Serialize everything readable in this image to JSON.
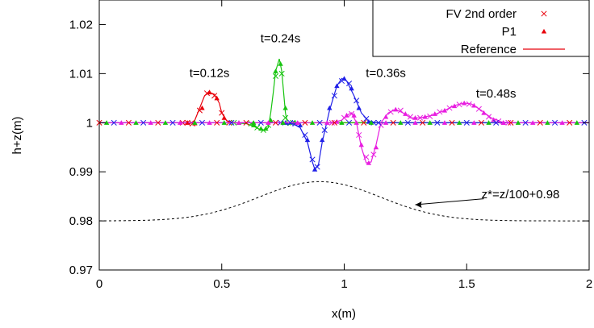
{
  "chart_data": {
    "type": "line",
    "xlabel": "x(m)",
    "ylabel": "h+z(m)",
    "xlim": [
      0,
      2
    ],
    "ylim": [
      0.97,
      1.025
    ],
    "x_ticks": [
      0,
      0.5,
      1,
      1.5,
      2
    ],
    "x_tick_labels": [
      "0",
      "0.5",
      "1",
      "1.5",
      "2"
    ],
    "y_ticks": [
      0.97,
      0.98,
      0.99,
      1.0,
      1.01,
      1.02
    ],
    "y_tick_labels": [
      "0.97",
      "0.98",
      "0.99",
      "1",
      "1.01",
      "1.02"
    ],
    "grid": false,
    "legend_position": "top-right",
    "legend": [
      {
        "label": "FV 2nd order",
        "marker": "x",
        "color": "#e8000b"
      },
      {
        "label": "P1",
        "marker": "triangle",
        "color": "#e8000b"
      },
      {
        "label": "Reference",
        "marker": "line",
        "color": "#e8000b"
      }
    ],
    "series": [
      {
        "label": "t=0.12s",
        "color": "#e8000b",
        "reference": [
          [
            0,
            1.0
          ],
          [
            0.34,
            1.0
          ],
          [
            0.37,
            0.9998
          ],
          [
            0.39,
            1.0005
          ],
          [
            0.41,
            1.003
          ],
          [
            0.43,
            1.0055
          ],
          [
            0.45,
            1.0062
          ],
          [
            0.47,
            1.0058
          ],
          [
            0.49,
            1.004
          ],
          [
            0.5,
            1.002
          ],
          [
            0.52,
            1.0004
          ],
          [
            0.55,
            1.0
          ],
          [
            2,
            1.0
          ]
        ],
        "fv": [
          [
            0.34,
            1.0
          ],
          [
            0.38,
            0.9998
          ],
          [
            0.41,
            1.0025
          ],
          [
            0.44,
            1.006
          ],
          [
            0.47,
            1.0055
          ],
          [
            0.5,
            1.002
          ],
          [
            0.53,
            1.0
          ]
        ],
        "p1": [
          [
            0.36,
            1.0
          ],
          [
            0.39,
            0.9999
          ],
          [
            0.42,
            1.003
          ],
          [
            0.45,
            1.0062
          ],
          [
            0.48,
            1.005
          ],
          [
            0.51,
            1.001
          ]
        ]
      },
      {
        "label": "t=0.24s",
        "color": "#17c40f",
        "reference": [
          [
            0,
            1.0
          ],
          [
            0.55,
            1.0
          ],
          [
            0.6,
            0.9998
          ],
          [
            0.63,
            0.9993
          ],
          [
            0.66,
            0.9985
          ],
          [
            0.68,
            0.9985
          ],
          [
            0.69,
            0.999
          ],
          [
            0.7,
            1.002
          ],
          [
            0.71,
            1.006
          ],
          [
            0.72,
            1.0105
          ],
          [
            0.735,
            1.013
          ],
          [
            0.745,
            1.0105
          ],
          [
            0.76,
            1.002
          ],
          [
            0.77,
            0.9995
          ],
          [
            0.79,
            1.0
          ],
          [
            2,
            1.0
          ]
        ],
        "fv": [
          [
            0.55,
            1.0
          ],
          [
            0.62,
            0.9998
          ],
          [
            0.645,
            0.999
          ],
          [
            0.67,
            0.9985
          ],
          [
            0.69,
            0.9995
          ],
          [
            0.72,
            1.0095
          ],
          [
            0.745,
            1.01
          ],
          [
            0.76,
            1.001
          ],
          [
            0.79,
            1.0
          ]
        ],
        "p1": [
          [
            0.57,
            1.0
          ],
          [
            0.63,
            0.9995
          ],
          [
            0.66,
            0.9988
          ],
          [
            0.68,
            0.9988
          ],
          [
            0.7,
            1.0005
          ],
          [
            0.72,
            1.0105
          ],
          [
            0.74,
            1.012
          ],
          [
            0.76,
            1.003
          ],
          [
            0.8,
            1.0
          ]
        ]
      },
      {
        "label": "t=0.36s",
        "color": "#1f1fe8",
        "reference": [
          [
            0,
            1.0
          ],
          [
            0.74,
            1.0
          ],
          [
            0.79,
            0.9998
          ],
          [
            0.82,
            0.999
          ],
          [
            0.85,
            0.996
          ],
          [
            0.87,
            0.992
          ],
          [
            0.88,
            0.9905
          ],
          [
            0.895,
            0.9915
          ],
          [
            0.91,
            0.996
          ],
          [
            0.94,
            1.0025
          ],
          [
            0.97,
            1.0075
          ],
          [
            0.99,
            1.009
          ],
          [
            1.01,
            1.0085
          ],
          [
            1.04,
            1.0055
          ],
          [
            1.07,
            1.002
          ],
          [
            1.1,
            1.0003
          ],
          [
            1.13,
            1.0
          ],
          [
            2,
            1.0
          ]
        ],
        "fv": [
          [
            0.74,
            1.0
          ],
          [
            0.8,
            0.9998
          ],
          [
            0.84,
            0.9975
          ],
          [
            0.87,
            0.9925
          ],
          [
            0.89,
            0.991
          ],
          [
            0.92,
            0.9985
          ],
          [
            0.96,
            1.0055
          ],
          [
            0.99,
            1.0085
          ],
          [
            1.02,
            1.008
          ],
          [
            1.05,
            1.0045
          ],
          [
            1.09,
            1.0008
          ],
          [
            1.12,
            1.0
          ]
        ],
        "p1": [
          [
            0.76,
            1.0
          ],
          [
            0.82,
            0.9995
          ],
          [
            0.85,
            0.9965
          ],
          [
            0.88,
            0.9905
          ],
          [
            0.91,
            0.9965
          ],
          [
            0.94,
            1.003
          ],
          [
            0.97,
            1.0075
          ],
          [
            1.0,
            1.009
          ],
          [
            1.03,
            1.007
          ],
          [
            1.06,
            1.003
          ],
          [
            1.1,
            1.0002
          ]
        ]
      },
      {
        "label": "t=0.48s",
        "color": "#e81ee0",
        "reference": [
          [
            0,
            1.0
          ],
          [
            0.95,
            1.0
          ],
          [
            0.99,
            1.0005
          ],
          [
            1.01,
            1.0015
          ],
          [
            1.03,
            1.002
          ],
          [
            1.05,
            1.0
          ],
          [
            1.07,
            0.995
          ],
          [
            1.09,
            0.9918
          ],
          [
            1.11,
            0.992
          ],
          [
            1.13,
            0.9955
          ],
          [
            1.15,
            1.0
          ],
          [
            1.18,
            1.002
          ],
          [
            1.21,
            1.0027
          ],
          [
            1.24,
            1.002
          ],
          [
            1.27,
            1.001
          ],
          [
            1.31,
            1.001
          ],
          [
            1.36,
            1.0015
          ],
          [
            1.41,
            1.0025
          ],
          [
            1.45,
            1.0035
          ],
          [
            1.49,
            1.004
          ],
          [
            1.52,
            1.0038
          ],
          [
            1.56,
            1.0025
          ],
          [
            1.6,
            1.001
          ],
          [
            1.64,
            1.0002
          ],
          [
            1.67,
            1.0
          ],
          [
            2,
            1.0
          ]
        ],
        "fv": [
          [
            0.95,
            1.0
          ],
          [
            1.0,
            1.001
          ],
          [
            1.03,
            1.0018
          ],
          [
            1.06,
            0.9975
          ],
          [
            1.09,
            0.993
          ],
          [
            1.12,
            0.9935
          ],
          [
            1.15,
            0.9995
          ],
          [
            1.19,
            1.0022
          ],
          [
            1.23,
            1.0025
          ],
          [
            1.27,
            1.0012
          ],
          [
            1.31,
            1.001
          ],
          [
            1.35,
            1.0013
          ],
          [
            1.39,
            1.0022
          ],
          [
            1.43,
            1.003
          ],
          [
            1.47,
            1.0037
          ],
          [
            1.51,
            1.0038
          ],
          [
            1.55,
            1.0028
          ],
          [
            1.59,
            1.0012
          ],
          [
            1.63,
            1.0003
          ],
          [
            1.67,
            1.0
          ]
        ],
        "p1": [
          [
            0.97,
            1.0002
          ],
          [
            1.01,
            1.0015
          ],
          [
            1.04,
            1.0015
          ],
          [
            1.07,
            0.9955
          ],
          [
            1.1,
            0.9918
          ],
          [
            1.13,
            0.995
          ],
          [
            1.17,
            1.0012
          ],
          [
            1.21,
            1.0027
          ],
          [
            1.25,
            1.0018
          ],
          [
            1.29,
            1.001
          ],
          [
            1.33,
            1.0012
          ],
          [
            1.37,
            1.0018
          ],
          [
            1.41,
            1.0025
          ],
          [
            1.45,
            1.0034
          ],
          [
            1.49,
            1.004
          ],
          [
            1.53,
            1.0035
          ],
          [
            1.57,
            1.002
          ],
          [
            1.61,
            1.0006
          ],
          [
            1.65,
            1.0
          ]
        ]
      }
    ],
    "topography": {
      "label": "z*=z/100+0.98",
      "color": "#000000",
      "style": "dashed",
      "function": "0.98 + 0.008*exp(-((x-0.9)/0.35)^2)",
      "x_range": [
        0,
        2
      ],
      "peak": 0.988
    },
    "annotations": [
      {
        "text": "t=0.12s",
        "x": 0.45,
        "y": 1.0093
      },
      {
        "text": "t=0.24s",
        "x": 0.74,
        "y": 1.0164
      },
      {
        "text": "t=0.36s",
        "x": 1.17,
        "y": 1.0093
      },
      {
        "text": "t=0.48s",
        "x": 1.62,
        "y": 1.0051
      },
      {
        "text": "z*=z/100+0.98",
        "x": 1.72,
        "y": 0.9846
      }
    ]
  }
}
